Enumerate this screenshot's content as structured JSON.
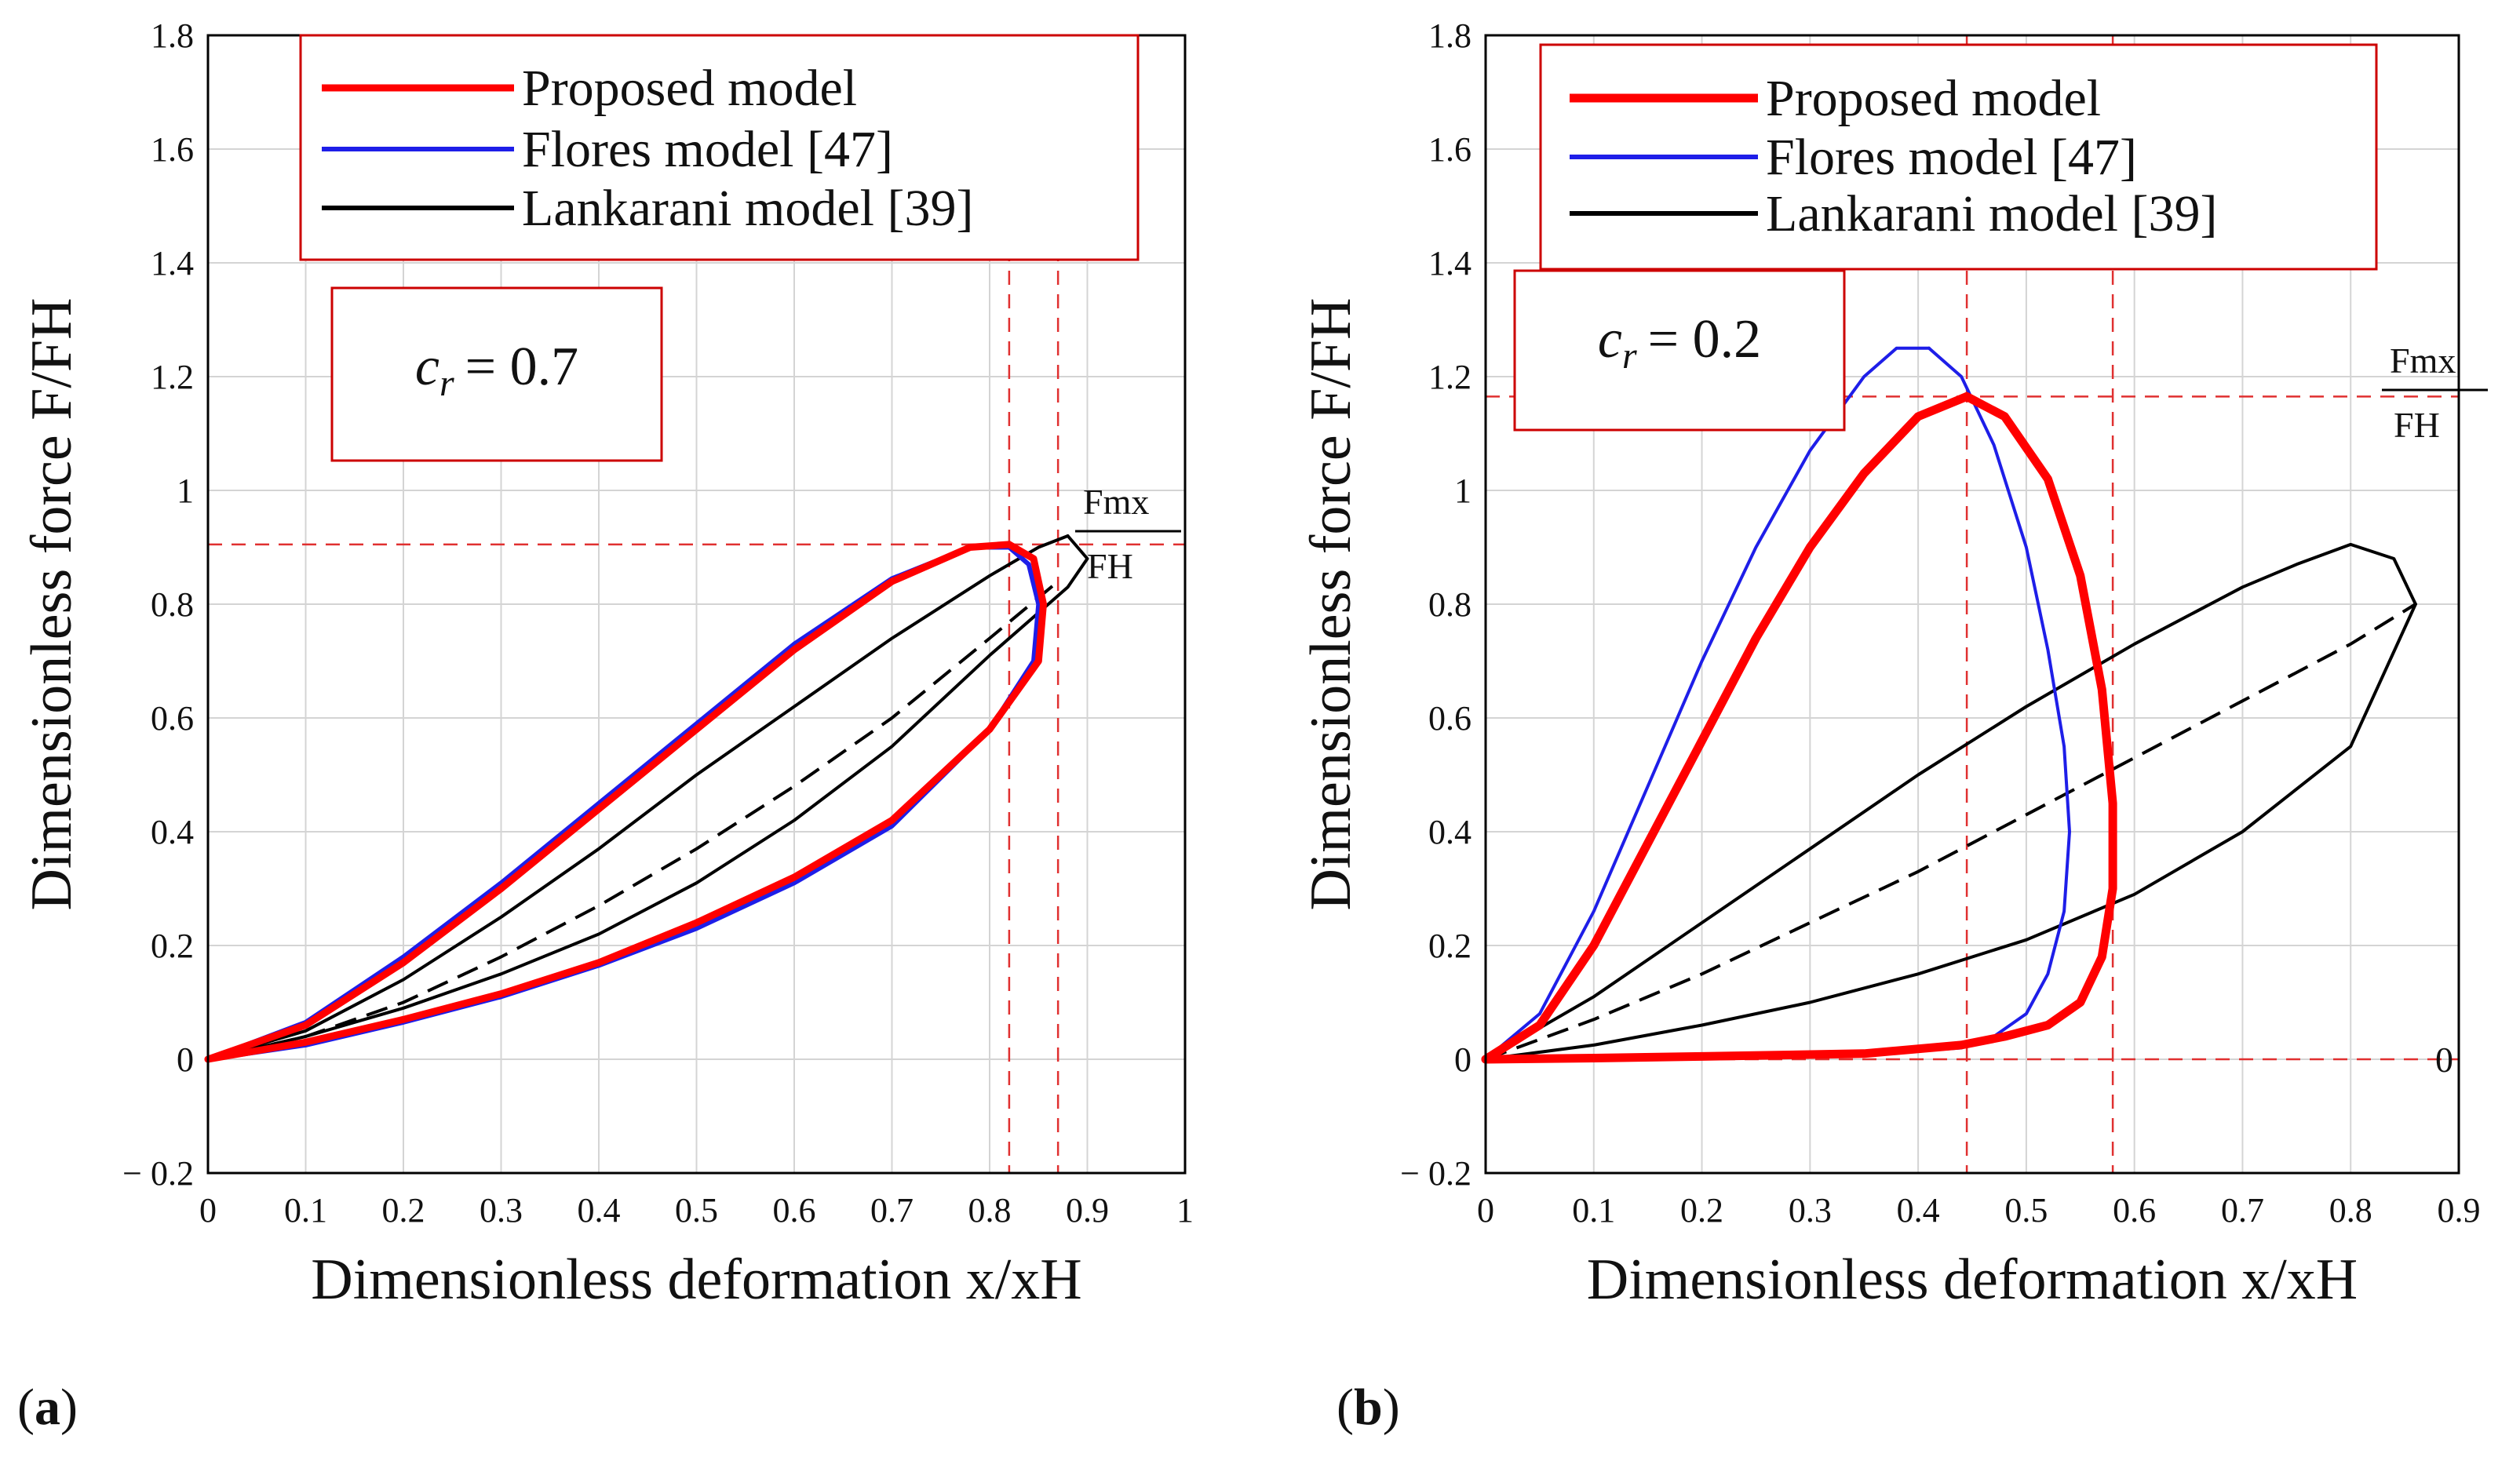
{
  "chart_data": [
    {
      "panel_label": "(a)",
      "type": "line",
      "xlabel": "Dimensionless deformation x/xH",
      "ylabel": "Dimensionless force F/FH",
      "xlim": [
        0,
        1
      ],
      "ylim": [
        -0.2,
        1.8
      ],
      "x_ticks": [
        "0",
        "0.1",
        "0.2",
        "0.3",
        "0.4",
        "0.5",
        "0.6",
        "0.7",
        "0.8",
        "0.9",
        "1"
      ],
      "y_ticks": [
        "− 0.2",
        "0",
        "0.2",
        "0.4",
        "0.6",
        "0.8",
        "1",
        "1.2",
        "1.4",
        "1.6",
        "1.8"
      ],
      "grid": true,
      "legend_position": "top",
      "annotation": "c_r = 0.7",
      "annotation_var": "c",
      "annotation_sub": "r",
      "annotation_value": "= 0.7",
      "fmx_label_top": "Fmx",
      "fmx_label_bottom": "FH",
      "reference_lines": {
        "y": 0.905,
        "x": [
          0.82,
          0.87
        ]
      },
      "series": [
        {
          "name": "Proposed model",
          "color": "#ff0000",
          "stroke": 9,
          "loading": {
            "x": [
              0,
              0.1,
              0.2,
              0.3,
              0.4,
              0.5,
              0.6,
              0.7,
              0.78,
              0.82
            ],
            "y": [
              0,
              0.06,
              0.17,
              0.3,
              0.44,
              0.58,
              0.72,
              0.84,
              0.9,
              0.905
            ]
          },
          "unloading": {
            "x": [
              0.82,
              0.845,
              0.855,
              0.85,
              0.8,
              0.7,
              0.6,
              0.5,
              0.4,
              0.3,
              0.2,
              0.1,
              0
            ],
            "y": [
              0.905,
              0.88,
              0.8,
              0.7,
              0.58,
              0.42,
              0.32,
              0.24,
              0.17,
              0.115,
              0.07,
              0.03,
              0
            ]
          }
        },
        {
          "name": "Flores model [47]",
          "color": "#1e1ee8",
          "stroke": 6,
          "loading": {
            "x": [
              0,
              0.1,
              0.2,
              0.3,
              0.4,
              0.5,
              0.6,
              0.7,
              0.78,
              0.82
            ],
            "y": [
              0,
              0.065,
              0.18,
              0.31,
              0.45,
              0.59,
              0.73,
              0.845,
              0.9,
              0.9
            ]
          },
          "unloading": {
            "x": [
              0.82,
              0.84,
              0.85,
              0.845,
              0.8,
              0.7,
              0.6,
              0.5,
              0.4,
              0.3,
              0.2,
              0.1,
              0
            ],
            "y": [
              0.9,
              0.87,
              0.8,
              0.7,
              0.58,
              0.41,
              0.31,
              0.23,
              0.165,
              0.11,
              0.065,
              0.025,
              0
            ]
          }
        },
        {
          "name": "Lankarani model [39]",
          "color": "#000000",
          "stroke": 4,
          "loading": {
            "x": [
              0,
              0.1,
              0.2,
              0.3,
              0.4,
              0.5,
              0.6,
              0.7,
              0.8,
              0.85,
              0.88
            ],
            "y": [
              0,
              0.05,
              0.14,
              0.25,
              0.37,
              0.5,
              0.62,
              0.74,
              0.85,
              0.9,
              0.92
            ]
          },
          "unloading": {
            "x": [
              0.88,
              0.9,
              0.88,
              0.8,
              0.7,
              0.6,
              0.5,
              0.4,
              0.3,
              0.2,
              0.1,
              0
            ],
            "y": [
              0.92,
              0.88,
              0.83,
              0.71,
              0.55,
              0.42,
              0.31,
              0.22,
              0.15,
              0.09,
              0.04,
              0
            ]
          },
          "dashed": {
            "x": [
              0,
              0.1,
              0.2,
              0.3,
              0.4,
              0.5,
              0.6,
              0.7,
              0.8,
              0.87
            ],
            "y": [
              0,
              0.04,
              0.1,
              0.18,
              0.27,
              0.37,
              0.48,
              0.6,
              0.74,
              0.84
            ]
          }
        }
      ]
    },
    {
      "panel_label": "(b)",
      "type": "line",
      "xlabel": "Dimensionless deformation x/xH",
      "ylabel": "Dimensionless force F/FH",
      "xlim": [
        0,
        0.9
      ],
      "ylim": [
        -0.2,
        1.8
      ],
      "x_ticks": [
        "0",
        "0.1",
        "0.2",
        "0.3",
        "0.4",
        "0.5",
        "0.6",
        "0.7",
        "0.8",
        "0.9"
      ],
      "y_ticks": [
        "− 0.2",
        "0",
        "0.2",
        "0.4",
        "0.6",
        "0.8",
        "1",
        "1.2",
        "1.4",
        "1.6",
        "1.8"
      ],
      "grid": true,
      "legend_position": "top",
      "annotation": "c_r = 0.2",
      "annotation_var": "c",
      "annotation_sub": "r",
      "annotation_value": "= 0.2",
      "fmx_label_top": "Fmx",
      "fmx_label_bottom": "FH",
      "zero_label": "0",
      "reference_lines": {
        "y": [
          1.165,
          0.0
        ],
        "x": [
          0.445,
          0.58
        ]
      },
      "series": [
        {
          "name": "Proposed model",
          "color": "#ff0000",
          "stroke": 11,
          "loading": {
            "x": [
              0,
              0.05,
              0.1,
              0.15,
              0.2,
              0.25,
              0.3,
              0.35,
              0.4,
              0.445
            ],
            "y": [
              0,
              0.06,
              0.2,
              0.38,
              0.56,
              0.74,
              0.9,
              1.03,
              1.13,
              1.165
            ]
          },
          "unloading": {
            "x": [
              0.445,
              0.48,
              0.52,
              0.55,
              0.57,
              0.58,
              0.58,
              0.57,
              0.55,
              0.52,
              0.48,
              0.44,
              0.35,
              0.2,
              0.1,
              0
            ],
            "y": [
              1.165,
              1.13,
              1.02,
              0.85,
              0.65,
              0.45,
              0.3,
              0.18,
              0.1,
              0.06,
              0.04,
              0.025,
              0.01,
              0.005,
              0.002,
              0
            ]
          }
        },
        {
          "name": "Flores model [47]",
          "color": "#1e1ee8",
          "stroke": 4,
          "loading": {
            "x": [
              0,
              0.05,
              0.1,
              0.15,
              0.2,
              0.25,
              0.3,
              0.35,
              0.38,
              0.41
            ],
            "y": [
              0,
              0.08,
              0.26,
              0.48,
              0.7,
              0.9,
              1.07,
              1.2,
              1.25,
              1.25
            ]
          },
          "unloading": {
            "x": [
              0.41,
              0.44,
              0.47,
              0.5,
              0.52,
              0.535,
              0.54,
              0.535,
              0.52,
              0.5,
              0.47,
              0.44,
              0.35,
              0.2,
              0.1,
              0
            ],
            "y": [
              1.25,
              1.2,
              1.08,
              0.9,
              0.72,
              0.55,
              0.4,
              0.26,
              0.15,
              0.08,
              0.04,
              0.02,
              0.008,
              0.004,
              0.002,
              0
            ]
          }
        },
        {
          "name": "Lankarani model [39]",
          "color": "#000000",
          "stroke": 4,
          "loading": {
            "x": [
              0,
              0.1,
              0.2,
              0.3,
              0.4,
              0.5,
              0.6,
              0.7,
              0.75,
              0.8,
              0.84,
              0.86
            ],
            "y": [
              0,
              0.11,
              0.24,
              0.37,
              0.5,
              0.62,
              0.73,
              0.83,
              0.87,
              0.905,
              0.88,
              0.8
            ]
          },
          "unloading": {
            "x": [
              0.86,
              0.8,
              0.7,
              0.6,
              0.5,
              0.4,
              0.3,
              0.2,
              0.1,
              0
            ],
            "y": [
              0.8,
              0.55,
              0.4,
              0.29,
              0.21,
              0.15,
              0.1,
              0.06,
              0.025,
              0
            ]
          },
          "dashed": {
            "x": [
              0,
              0.1,
              0.2,
              0.3,
              0.4,
              0.5,
              0.6,
              0.7,
              0.8,
              0.86
            ],
            "y": [
              0,
              0.07,
              0.15,
              0.24,
              0.33,
              0.43,
              0.53,
              0.63,
              0.73,
              0.8
            ]
          }
        }
      ]
    }
  ],
  "colors": {
    "reference_line": "#e03030",
    "grid": "#d4d4d4",
    "legend_border": "#cc0000"
  }
}
